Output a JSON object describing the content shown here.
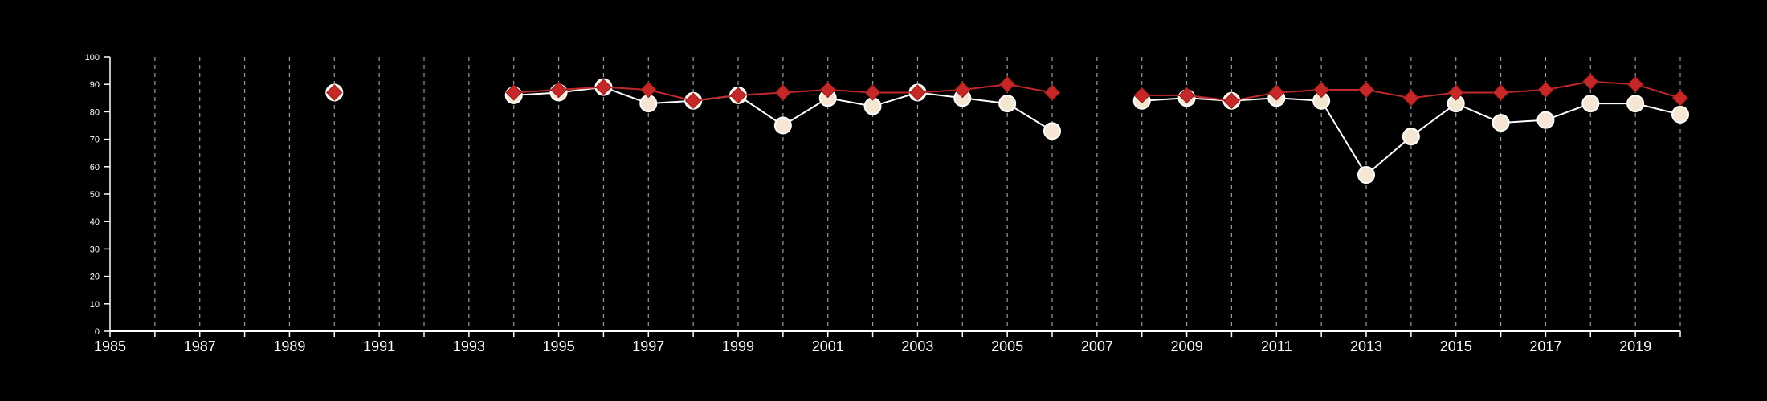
{
  "chart_data": {
    "type": "line",
    "title": "",
    "xlabel": "",
    "ylabel": "",
    "xlim": [
      1985,
      2020
    ],
    "ylim": [
      0,
      100
    ],
    "x_ticks": [
      1985,
      1987,
      1989,
      1991,
      1993,
      1995,
      1997,
      1999,
      2001,
      2003,
      2005,
      2007,
      2009,
      2011,
      2013,
      2015,
      2017,
      2019
    ],
    "y_ticks": [
      0,
      10,
      20,
      30,
      40,
      50,
      60,
      70,
      80,
      90,
      100
    ],
    "vertical_gridlines": "dashed, every year",
    "legend": "none",
    "series": [
      {
        "marker": "circle",
        "color": "#ffffff",
        "marker_fill": "#f5e6d3",
        "points": [
          [
            1990,
            87
          ],
          [
            1994,
            86
          ],
          [
            1995,
            87
          ],
          [
            1996,
            89
          ],
          [
            1997,
            83
          ],
          [
            1998,
            84
          ],
          [
            1999,
            86
          ],
          [
            2000,
            75
          ],
          [
            2001,
            85
          ],
          [
            2002,
            82
          ],
          [
            2003,
            87
          ],
          [
            2004,
            85
          ],
          [
            2005,
            83
          ],
          [
            2006,
            73
          ],
          [
            2008,
            84
          ],
          [
            2009,
            85
          ],
          [
            2010,
            84
          ],
          [
            2011,
            85
          ],
          [
            2012,
            84
          ],
          [
            2013,
            57
          ],
          [
            2014,
            71
          ],
          [
            2015,
            83
          ],
          [
            2016,
            76
          ],
          [
            2017,
            77
          ],
          [
            2018,
            83
          ],
          [
            2019,
            83
          ],
          [
            2020,
            79
          ]
        ]
      },
      {
        "marker": "diamond",
        "color": "#c0282b",
        "marker_fill": "#c62828",
        "points": [
          [
            1990,
            87
          ],
          [
            1994,
            87
          ],
          [
            1995,
            88
          ],
          [
            1996,
            89
          ],
          [
            1997,
            88
          ],
          [
            1998,
            84
          ],
          [
            1999,
            86
          ],
          [
            2000,
            87
          ],
          [
            2001,
            88
          ],
          [
            2002,
            87
          ],
          [
            2003,
            87
          ],
          [
            2004,
            88
          ],
          [
            2005,
            90
          ],
          [
            2006,
            87
          ],
          [
            2008,
            86
          ],
          [
            2009,
            86
          ],
          [
            2010,
            84
          ],
          [
            2011,
            87
          ],
          [
            2012,
            88
          ],
          [
            2013,
            88
          ],
          [
            2014,
            85
          ],
          [
            2015,
            87
          ],
          [
            2016,
            87
          ],
          [
            2017,
            88
          ],
          [
            2018,
            91
          ],
          [
            2019,
            90
          ],
          [
            2020,
            85
          ]
        ]
      }
    ]
  }
}
